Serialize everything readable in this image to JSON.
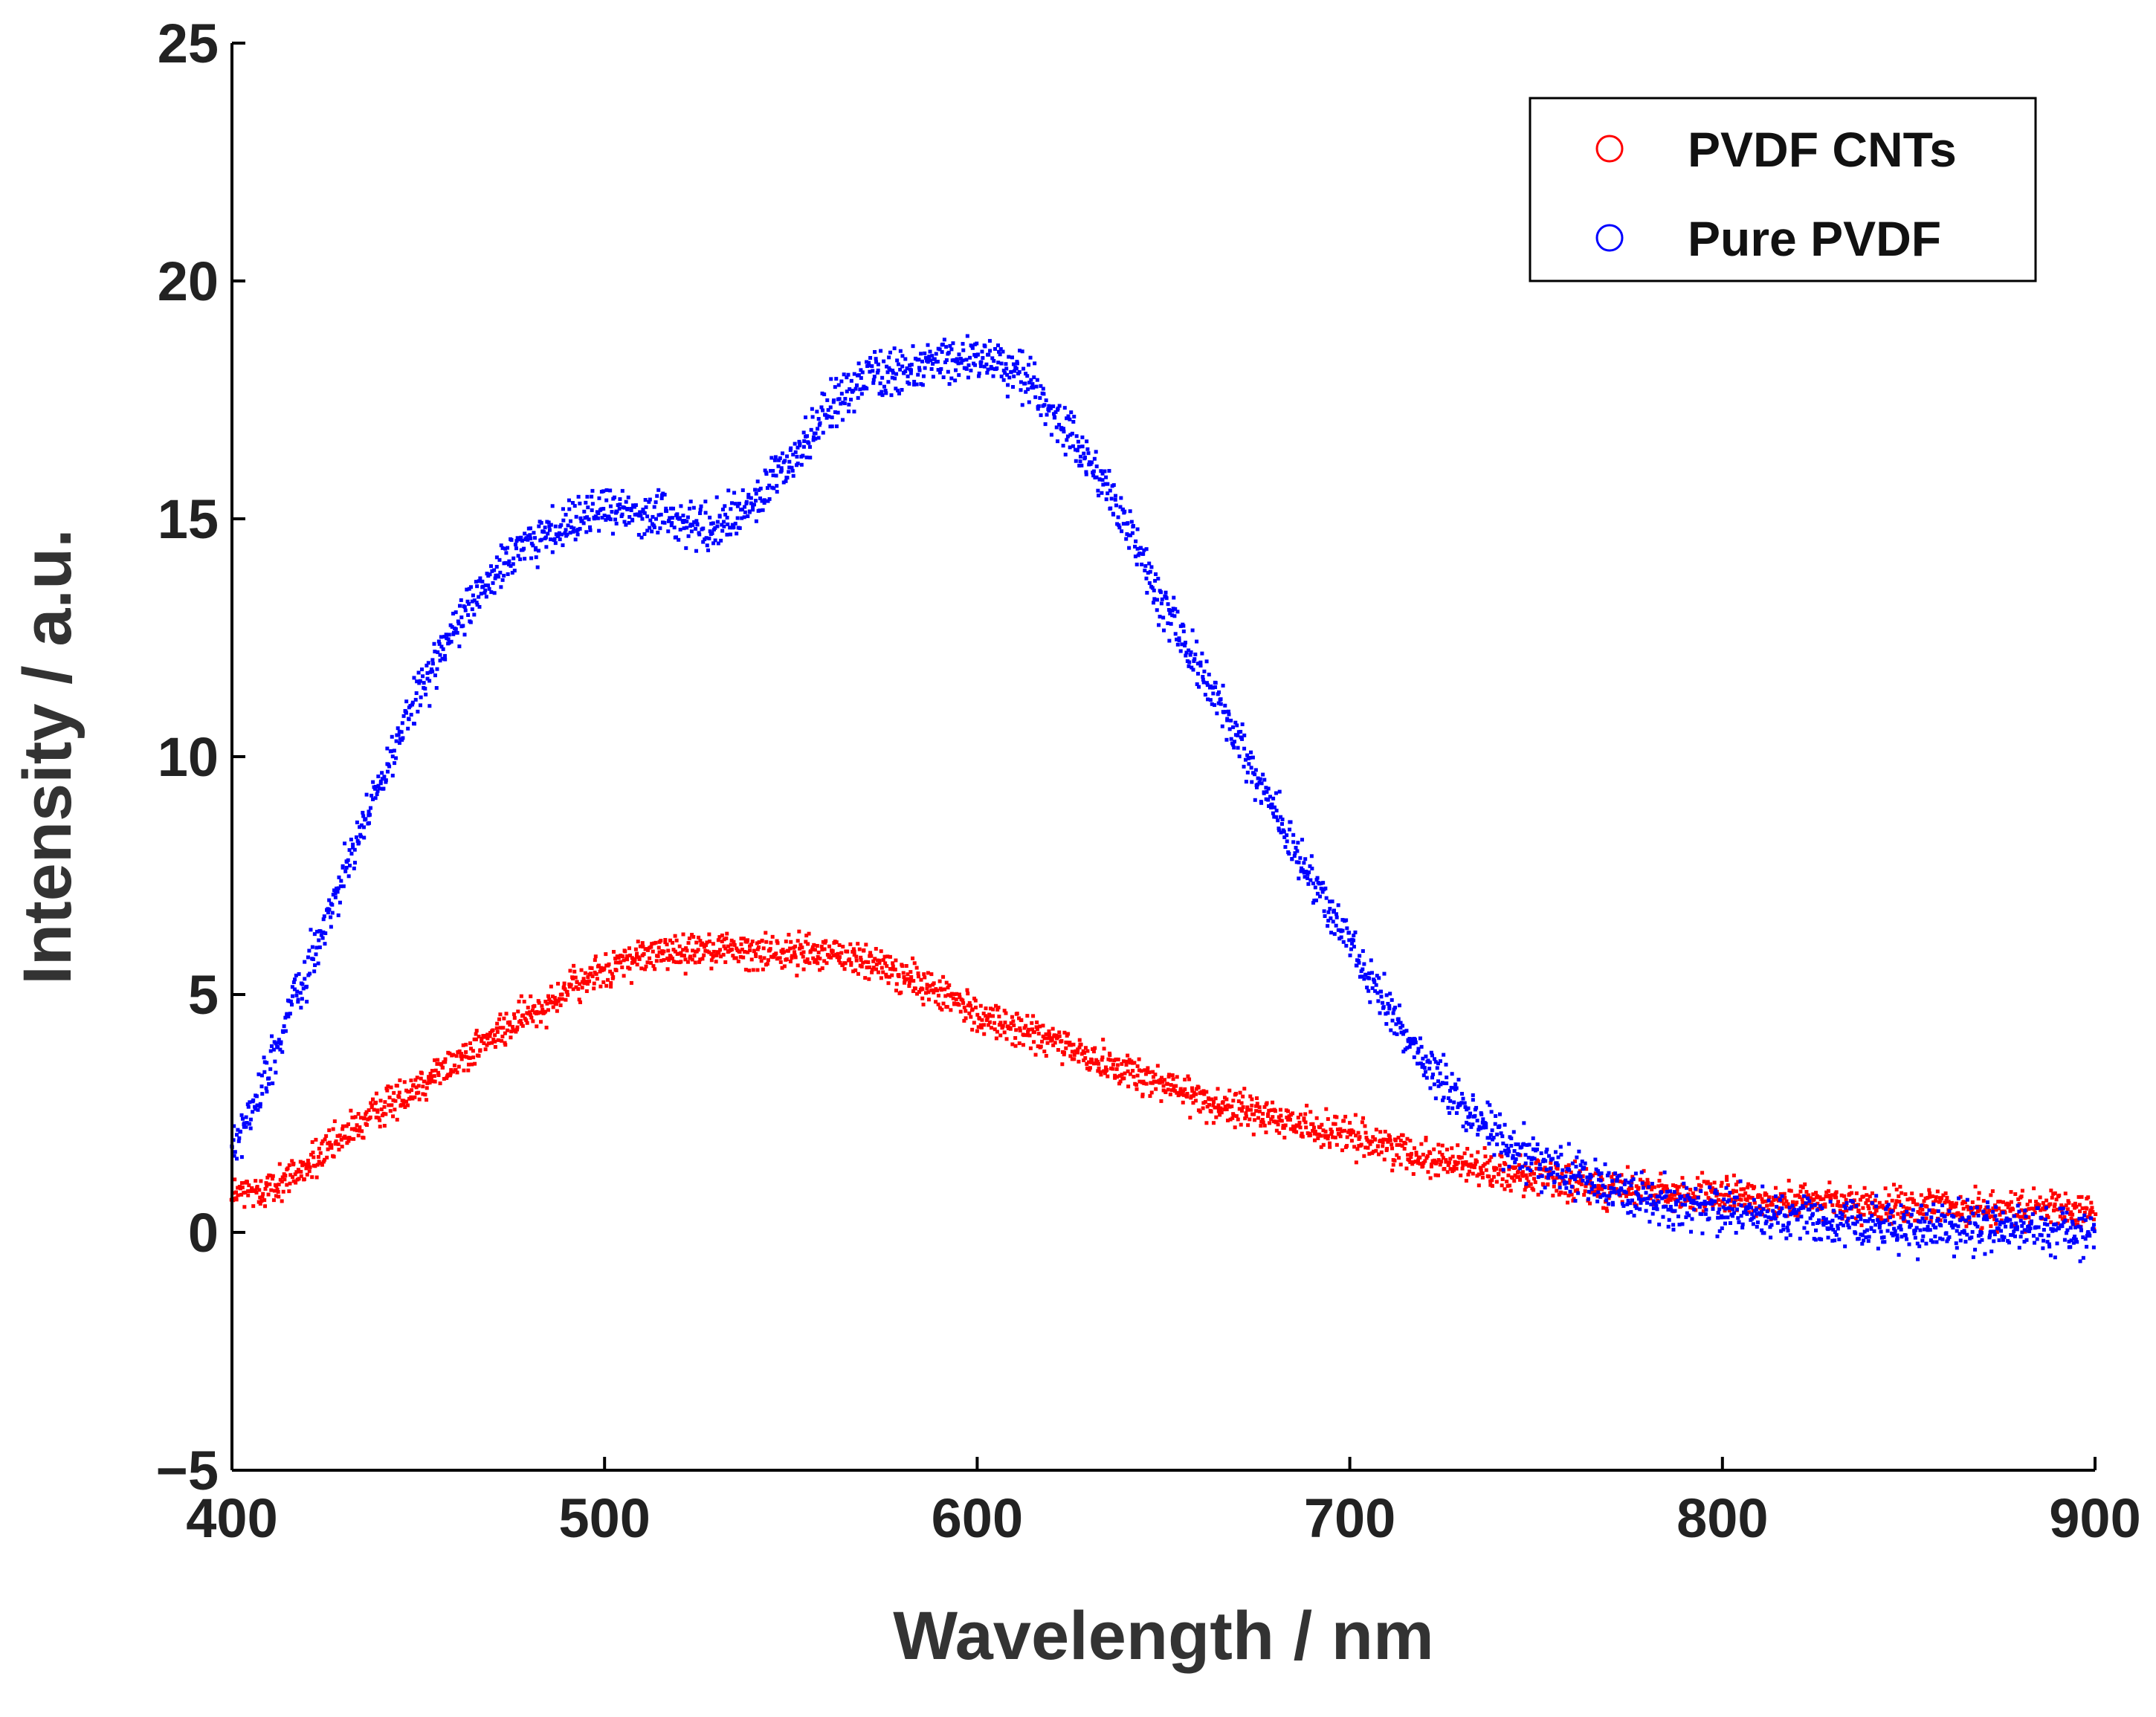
{
  "chart_data": {
    "type": "scatter",
    "title": "",
    "xlabel": "Wavelength / nm",
    "ylabel": "Intensity / a.u.",
    "xlim": [
      400,
      900
    ],
    "ylim": [
      -5,
      25
    ],
    "xticks": [
      400,
      500,
      600,
      700,
      800,
      900
    ],
    "yticks": [
      -5,
      0,
      5,
      10,
      15,
      20,
      25
    ],
    "xtick_labels": [
      "400",
      "500",
      "600",
      "700",
      "800",
      "900"
    ],
    "ytick_labels": [
      "−5",
      "0",
      "5",
      "10",
      "15",
      "20",
      "25"
    ],
    "grid": false,
    "legend_position": "top-right",
    "marker": "circle",
    "series": [
      {
        "name": "PVDF CNTs",
        "color": "#ff0000",
        "noise": 0.35,
        "x": [
          400,
          410,
          420,
          430,
          440,
          450,
          460,
          470,
          480,
          490,
          500,
          510,
          520,
          530,
          540,
          550,
          560,
          570,
          580,
          590,
          600,
          610,
          620,
          630,
          640,
          650,
          660,
          670,
          680,
          690,
          700,
          710,
          720,
          730,
          740,
          750,
          760,
          770,
          780,
          790,
          800,
          810,
          820,
          830,
          840,
          850,
          860,
          870,
          880,
          890,
          900
        ],
        "y": [
          0.8,
          0.9,
          1.4,
          2.0,
          2.6,
          3.1,
          3.6,
          4.1,
          4.6,
          5.1,
          5.5,
          5.8,
          5.9,
          6.0,
          5.9,
          5.9,
          5.9,
          5.7,
          5.4,
          5.0,
          4.6,
          4.3,
          4.0,
          3.7,
          3.4,
          3.1,
          2.8,
          2.6,
          2.4,
          2.2,
          2.0,
          1.8,
          1.6,
          1.45,
          1.3,
          1.15,
          1.0,
          0.9,
          0.85,
          0.8,
          0.75,
          0.7,
          0.65,
          0.6,
          0.58,
          0.55,
          0.52,
          0.5,
          0.48,
          0.47,
          0.45
        ]
      },
      {
        "name": "Pure PVDF",
        "color": "#0000ff",
        "noise": 0.45,
        "x": [
          400,
          410,
          420,
          430,
          440,
          450,
          460,
          470,
          480,
          490,
          500,
          510,
          520,
          530,
          540,
          550,
          560,
          570,
          580,
          590,
          600,
          610,
          620,
          630,
          640,
          650,
          660,
          670,
          680,
          690,
          700,
          710,
          720,
          730,
          740,
          750,
          760,
          770,
          780,
          790,
          800,
          810,
          820,
          830,
          840,
          850,
          860,
          870,
          880,
          890,
          900
        ],
        "y": [
          1.6,
          3.5,
          5.5,
          7.5,
          9.5,
          11.3,
          12.7,
          13.8,
          14.5,
          14.9,
          15.2,
          15.1,
          14.9,
          14.8,
          15.3,
          16.2,
          17.3,
          18.0,
          18.1,
          18.3,
          18.4,
          18.2,
          17.3,
          16.2,
          14.9,
          13.2,
          11.8,
          10.4,
          8.8,
          7.4,
          6.0,
          4.7,
          3.6,
          2.7,
          2.0,
          1.5,
          1.2,
          0.9,
          0.7,
          0.55,
          0.45,
          0.4,
          0.3,
          0.2,
          0.15,
          0.12,
          0.1,
          0.1,
          0.08,
          0.05,
          0.05
        ]
      }
    ]
  }
}
